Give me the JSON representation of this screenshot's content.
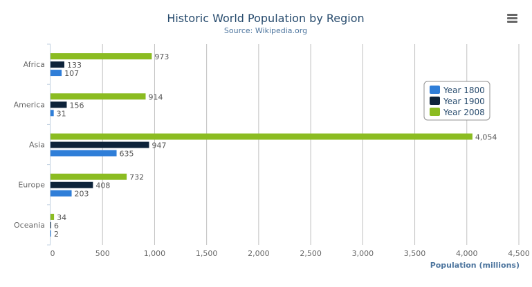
{
  "chart_data": {
    "type": "bar",
    "orientation": "horizontal",
    "title": "Historic World Population by Region",
    "subtitle": "Source: Wikipedia.org",
    "xlabel": "",
    "ylabel": "Population (millions)",
    "categories": [
      "Africa",
      "America",
      "Asia",
      "Europe",
      "Oceania"
    ],
    "series": [
      {
        "name": "Year 1800",
        "color": "#2f7ed8",
        "values": [
          107,
          31,
          635,
          203,
          2
        ]
      },
      {
        "name": "Year 1900",
        "color": "#0d233a",
        "values": [
          133,
          156,
          947,
          408,
          6
        ]
      },
      {
        "name": "Year 2008",
        "color": "#8bbc21",
        "values": [
          973,
          914,
          4054,
          732,
          34
        ]
      }
    ],
    "value_ticks": [
      "0",
      "500",
      "1,000",
      "1,500",
      "2,000",
      "2,500",
      "3,000",
      "3,500",
      "4,000",
      "4,500"
    ],
    "ylim": [
      0,
      4500
    ],
    "grid": true,
    "data_labels": true,
    "legend_position": "right",
    "menu_icon": "hamburger-menu-icon"
  }
}
